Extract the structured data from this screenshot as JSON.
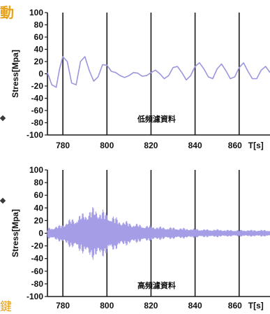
{
  "fragments": {
    "top": "動",
    "bottom": "鍵"
  },
  "chart_data": [
    {
      "type": "line",
      "title": "",
      "xlabel": "T[s]",
      "ylabel": "Stress[Mpa]",
      "annotation": "低頻濾資料",
      "xlim": [
        773,
        874
      ],
      "ylim": [
        -100,
        100
      ],
      "x_ticks": [
        "780",
        "800",
        "820",
        "840",
        "860"
      ],
      "y_ticks": [
        "100",
        "80",
        "60",
        "40",
        "20",
        "0",
        "-20",
        "-40",
        "-60",
        "-80",
        "-100"
      ],
      "x_gridlines": [
        780,
        800,
        820,
        840,
        860
      ],
      "line_color": "#9a96df",
      "series": [
        {
          "x": [
            773,
            775,
            777,
            778.5,
            780,
            782,
            784,
            786,
            788,
            790,
            792,
            794,
            796,
            798,
            800,
            802,
            804,
            806,
            808,
            810,
            812,
            814,
            816,
            818,
            820,
            822,
            824,
            826,
            828,
            830,
            832,
            834,
            836,
            838,
            840,
            842,
            844,
            846,
            848,
            850,
            852,
            854,
            856,
            858,
            860,
            862,
            864,
            866,
            868,
            870,
            872,
            874
          ],
          "y": [
            2,
            -18,
            -22,
            8,
            28,
            20,
            -15,
            -18,
            20,
            28,
            5,
            -12,
            -5,
            15,
            14,
            4,
            2,
            -3,
            -6,
            -3,
            2,
            1,
            -4,
            -3,
            2,
            6,
            0,
            -8,
            -3,
            10,
            12,
            2,
            -10,
            -3,
            12,
            18,
            8,
            -5,
            -8,
            8,
            16,
            5,
            -8,
            -5,
            10,
            18,
            4,
            -8,
            -8,
            6,
            12,
            2
          ]
        }
      ]
    },
    {
      "type": "line",
      "title": "",
      "xlabel": "T[s]",
      "ylabel": "Stress[Mpa]",
      "annotation": "高頻濾資料",
      "xlim": [
        773,
        874
      ],
      "ylim": [
        -100,
        100
      ],
      "x_ticks": [
        "780",
        "800",
        "820",
        "840",
        "860"
      ],
      "y_ticks": [
        "100",
        "80",
        "60",
        "40",
        "20",
        "0",
        "-20",
        "-40",
        "-60",
        "-80",
        "-100"
      ],
      "x_gridlines": [
        780,
        800,
        820,
        840,
        860
      ],
      "line_color": "#a59ee6",
      "series": [
        {
          "x": [
            773,
            778,
            783,
            788,
            791,
            794,
            797,
            800,
            803,
            806,
            810,
            815,
            820,
            825,
            830,
            835,
            840,
            845,
            850,
            855,
            860,
            865,
            870,
            874
          ],
          "envelope": [
            8,
            12,
            22,
            30,
            38,
            42,
            40,
            34,
            28,
            22,
            18,
            14,
            12,
            10,
            9,
            8,
            7,
            6,
            6,
            5,
            5,
            5,
            5,
            5
          ]
        }
      ]
    }
  ]
}
